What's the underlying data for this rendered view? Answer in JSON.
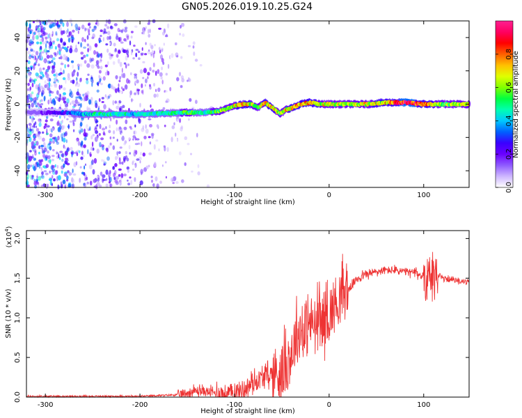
{
  "title": "GN05.2026.019.10.25.G24",
  "colorbar": {
    "label": "Normalized spectral amplitude",
    "ticks": [
      0.0,
      0.2,
      0.4,
      0.6,
      0.8
    ],
    "tick_labels": [
      "0.0",
      "0.2",
      "0.4",
      "0.6",
      "0.8"
    ],
    "colors": [
      "#ffffff",
      "#cdb6ff",
      "#8f5bff",
      "#6a00ff",
      "#3a00ff",
      "#0060ff",
      "#00c8ff",
      "#00ffb0",
      "#00ff40",
      "#80ff00",
      "#e0ff00",
      "#ffc000",
      "#ff6000",
      "#ff0000",
      "#ff0060",
      "#ff2090"
    ]
  },
  "chart_data": [
    {
      "type": "heatmap",
      "name": "spectrogram",
      "xlabel": "Height of straight line (km)",
      "ylabel": "Frequency (Hz)",
      "xlim": [
        -320,
        148
      ],
      "ylim": [
        -50,
        50
      ],
      "xticks": [
        -300,
        -200,
        -100,
        0,
        100
      ],
      "xtick_labels": [
        "-300",
        "-200",
        "-100",
        "0",
        "100"
      ],
      "yticks": [
        -40,
        -20,
        0,
        20,
        40
      ],
      "ytick_labels": [
        "-40",
        "-20",
        "0",
        "20",
        "40"
      ],
      "ridge": {
        "description": "dominant frequency track of normalized spectral amplitude",
        "x": [
          -320,
          -280,
          -260,
          -240,
          -200,
          -150,
          -130,
          -115,
          -100,
          -90,
          -82,
          -75,
          -68,
          -60,
          -52,
          -45,
          -38,
          -30,
          -20,
          -10,
          0,
          20,
          40,
          60,
          80,
          100,
          120,
          148
        ],
        "freq": [
          -5,
          -5,
          -6,
          -6,
          -6,
          -5,
          -5,
          -4,
          -1,
          0,
          0,
          -2,
          1,
          -2,
          -6,
          -3,
          -2,
          0,
          1,
          0,
          0,
          0,
          0,
          1,
          1,
          0,
          0,
          0
        ],
        "amplitude": [
          0.15,
          0.3,
          0.45,
          0.5,
          0.45,
          0.55,
          0.5,
          0.6,
          0.7,
          0.8,
          0.7,
          0.6,
          0.75,
          0.8,
          0.6,
          0.7,
          0.8,
          0.75,
          0.8,
          0.7,
          0.7,
          0.65,
          0.7,
          0.75,
          0.95,
          0.85,
          0.6,
          0.7
        ]
      },
      "noise_region": {
        "x_from": -320,
        "x_to": -120,
        "intensity": "scattered low amplitude (0.1-0.3)"
      }
    },
    {
      "type": "line",
      "name": "snr",
      "xlabel": "Height of straight line (km)",
      "ylabel": "SNR (10 * v/v)",
      "y_scale_label": "(x10",
      "y_scale_exponent": "4",
      "xlim": [
        -320,
        148
      ],
      "ylim": [
        0,
        2.1
      ],
      "xticks": [
        -300,
        -200,
        -100,
        0,
        100
      ],
      "xtick_labels": [
        "-300",
        "-200",
        "-100",
        "0",
        "100"
      ],
      "yticks": [
        0.0,
        0.5,
        1.0,
        1.5,
        2.0
      ],
      "ytick_labels": [
        "0.0",
        "0.5",
        "1.0",
        "1.5",
        "2.0"
      ],
      "color": "#ee3333",
      "series": [
        {
          "name": "SNR",
          "x": [
            -320,
            -290,
            -260,
            -230,
            -200,
            -180,
            -160,
            -150,
            -140,
            -130,
            -120,
            -110,
            -100,
            -90,
            -80,
            -70,
            -60,
            -50,
            -45,
            -40,
            -35,
            -30,
            -25,
            -20,
            -15,
            -10,
            -5,
            0,
            5,
            10,
            15,
            20,
            30,
            40,
            50,
            60,
            70,
            80,
            90,
            100,
            104,
            106,
            108,
            110,
            112,
            120,
            130,
            140,
            148
          ],
          "y": [
            0.01,
            0.01,
            0.01,
            0.01,
            0.01,
            0.02,
            0.03,
            0.05,
            0.08,
            0.07,
            0.05,
            0.04,
            0.06,
            0.1,
            0.18,
            0.25,
            0.3,
            0.32,
            0.4,
            0.55,
            0.75,
            0.85,
            0.8,
            0.95,
            0.9,
            0.95,
            1.0,
            1.05,
            1.15,
            1.25,
            1.3,
            1.35,
            1.5,
            1.55,
            1.58,
            1.6,
            1.6,
            1.58,
            1.57,
            1.52,
            1.5,
            1.65,
            1.8,
            1.2,
            1.55,
            1.5,
            1.48,
            1.46,
            1.45
          ]
        }
      ],
      "noise_amplitude": [
        {
          "x_from": -320,
          "x_to": -160,
          "amp": 0.01
        },
        {
          "x_from": -160,
          "x_to": -120,
          "amp": 0.06
        },
        {
          "x_from": -120,
          "x_to": -60,
          "amp": 0.12
        },
        {
          "x_from": -60,
          "x_to": 20,
          "amp": 0.35
        },
        {
          "x_from": 20,
          "x_to": 100,
          "amp": 0.05
        },
        {
          "x_from": 100,
          "x_to": 115,
          "amp": 0.3
        },
        {
          "x_from": 115,
          "x_to": 148,
          "amp": 0.03
        }
      ]
    }
  ]
}
